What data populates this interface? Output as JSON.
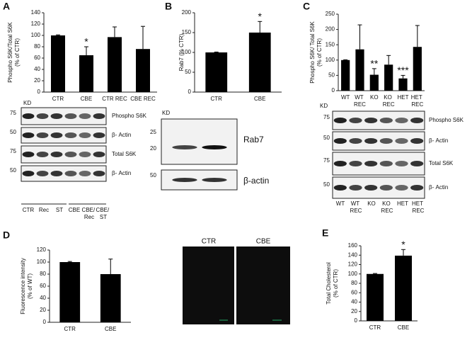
{
  "chart_data": [
    {
      "type": "bar",
      "panel": "A",
      "y_label": [
        "Phospho S6K/Total S6K",
        "(% of CTR)"
      ],
      "categories": [
        "CTR",
        "CBE",
        "CTR REC",
        "CBE REC"
      ],
      "values": [
        100,
        65,
        97,
        76
      ],
      "errors": [
        1,
        15,
        18,
        40
      ],
      "color": "#000000",
      "ylim": [
        0,
        140
      ],
      "yticks": [
        0,
        20,
        40,
        60,
        80,
        100,
        120,
        140
      ],
      "annotations": [
        {
          "text": "*",
          "category": "CBE"
        }
      ]
    },
    {
      "type": "bar",
      "panel": "B",
      "y_label": [
        "Rab7 (% CTR)"
      ],
      "categories": [
        "CTR",
        "CBE"
      ],
      "values": [
        100,
        150
      ],
      "errors": [
        1,
        28
      ],
      "color": "#000000",
      "ylim": [
        0,
        200
      ],
      "yticks": [
        0,
        50,
        100,
        150,
        200
      ],
      "annotations": [
        {
          "text": "*",
          "category": "CBE"
        }
      ]
    },
    {
      "type": "bar",
      "panel": "C",
      "y_label": [
        "Phospho S6K/ Total S6K",
        "(% of CTR)"
      ],
      "categories": [
        "WT",
        "WT REC",
        "KO",
        "KO REC",
        "HET",
        "HET REC"
      ],
      "values": [
        100,
        135,
        52,
        85,
        40,
        143
      ],
      "errors": [
        1,
        80,
        20,
        30,
        10,
        70
      ],
      "color": "#000000",
      "ylim": [
        0,
        250
      ],
      "yticks": [
        0,
        50,
        100,
        150,
        200,
        250
      ],
      "annotations": [
        {
          "text": "**",
          "category": "KO"
        },
        {
          "text": "***",
          "category": "HET"
        }
      ]
    },
    {
      "type": "bar",
      "panel": "D",
      "y_label": [
        "Fluorescence intensity",
        "(% of WT)"
      ],
      "categories": [
        "CTR",
        "CBE"
      ],
      "values": [
        100,
        80
      ],
      "errors": [
        1,
        25
      ],
      "color": "#000000",
      "ylim": [
        0,
        120
      ],
      "yticks": [
        0,
        20,
        40,
        60,
        80,
        100,
        120
      ],
      "annotations": []
    },
    {
      "type": "bar",
      "panel": "E",
      "y_label": [
        "Total Cholesterol",
        "(% of CTR)"
      ],
      "categories": [
        "CTR",
        "CBE"
      ],
      "values": [
        100,
        139
      ],
      "errors": [
        1,
        13
      ],
      "color": "#000000",
      "ylim": [
        0,
        160
      ],
      "yticks": [
        0,
        20,
        40,
        60,
        80,
        100,
        120,
        140,
        160
      ],
      "annotations": [
        {
          "text": "*",
          "category": "CBE"
        }
      ]
    }
  ],
  "blots": {
    "A": {
      "kd": "KD",
      "markers": [
        75,
        50,
        75,
        50
      ],
      "proteins": [
        "Phospho S6K",
        "β- Actin",
        "Total S6K",
        "β- Actin"
      ],
      "lanes": [
        "CTR",
        "Rec",
        "ST",
        "CBE",
        "CBE/ Rec",
        "CBE/ ST"
      ]
    },
    "B": {
      "kd": "KD",
      "markers": [
        25,
        20,
        50
      ],
      "proteins": [
        "Rab7",
        "β-actin"
      ]
    },
    "C": {
      "kd": "KD",
      "markers": [
        75,
        50,
        75,
        50
      ],
      "proteins": [
        "Phospho S6K",
        "β- Actin",
        "Total S6K",
        "β- Actin"
      ],
      "lanes": [
        "WT",
        "WT REC",
        "KO",
        "KO REC",
        "HET",
        "HET REC"
      ]
    }
  },
  "micrographs": [
    "CTR",
    "CBE"
  ]
}
